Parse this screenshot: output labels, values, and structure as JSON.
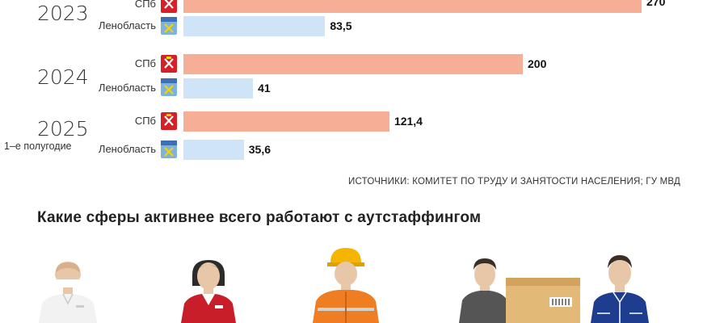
{
  "chart_data": {
    "type": "bar",
    "orientation": "horizontal",
    "groups": [
      {
        "year": "2023",
        "subtitle": "",
        "rows": [
          {
            "region": "СПб",
            "value_label": "270",
            "value": 270
          },
          {
            "region": "Ленобласть",
            "value_label": "83,5",
            "value": 83.5
          }
        ]
      },
      {
        "year": "2024",
        "subtitle": "",
        "rows": [
          {
            "region": "СПб",
            "value_label": "200",
            "value": 200
          },
          {
            "region": "Ленобласть",
            "value_label": "41",
            "value": 41
          }
        ]
      },
      {
        "year": "2025",
        "subtitle": "1–е полугодие",
        "rows": [
          {
            "region": "СПб",
            "value_label": "121,4",
            "value": 121.4
          },
          {
            "region": "Ленобласть",
            "value_label": "35,6",
            "value": 35.6
          }
        ]
      }
    ],
    "colors": {
      "СПб": "#f6ae96",
      "Ленобласть": "#cfe5f7"
    },
    "source": "ИСТОЧНИКИ: КОМИТЕТ ПО ТРУДУ И ЗАНЯТОСТИ НАСЕЛЕНИЯ; ГУ МВД"
  },
  "section_title": "Какие сферы активнее всего работают с аутстаффингом",
  "illustrations": [
    "medic-figure",
    "retail-worker-figure",
    "construction-worker-figure",
    "loader-with-box-figure",
    "factory-worker-figure"
  ]
}
